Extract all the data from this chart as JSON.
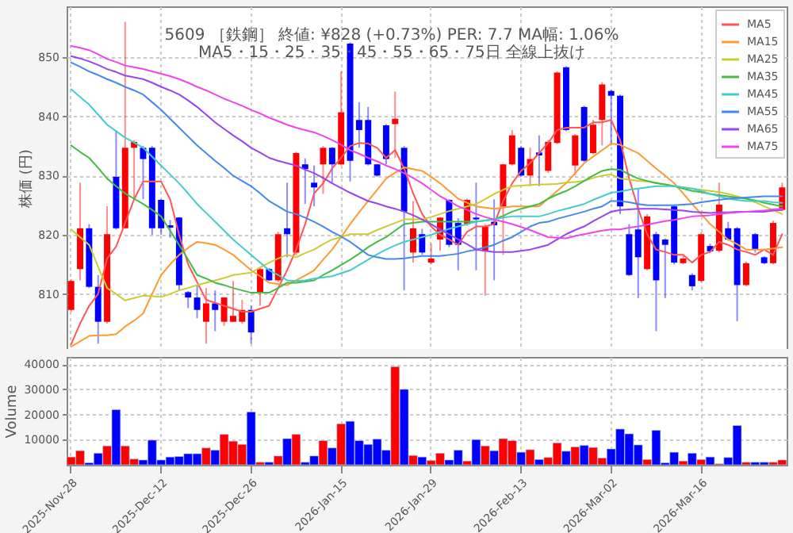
{
  "chart_data": [
    {
      "type": "candlestick",
      "title": "5609 ［鉄鋼］ 終値: ¥828 (+0.73%)   PER: 7.7  MA幅: 1.06%",
      "subtitle": "MA5・15・25・35・45・55・65・75日 全線上抜け",
      "ylabel": "株価 (円)",
      "categories": [
        null,
        null,
        null,
        null,
        null,
        null,
        null,
        null,
        null,
        null,
        null,
        null,
        null,
        null,
        null,
        null,
        null,
        null,
        null,
        null,
        null,
        null,
        null,
        null,
        null,
        null,
        null,
        null,
        null,
        null,
        null,
        null,
        null,
        null,
        null,
        null,
        null,
        null,
        null,
        null,
        null,
        null,
        null,
        null,
        null,
        null,
        null,
        null,
        null,
        null,
        null,
        null,
        null,
        null,
        null,
        null,
        null,
        null,
        null,
        null,
        null,
        null,
        null,
        null,
        null,
        null,
        null,
        null,
        null,
        null,
        null,
        null,
        null,
        null,
        null,
        null,
        null,
        null,
        null,
        null
      ],
      "ohlc": [
        [
          807.3,
          812.5,
          807,
          812.2
        ],
        [
          814.2,
          828.8,
          812.3,
          821.1
        ],
        [
          821.1,
          821.8,
          811,
          811.2
        ],
        [
          811.2,
          813.2,
          801.6,
          805.3
        ],
        [
          805.3,
          824.8,
          805,
          820.1
        ],
        [
          829.8,
          837.6,
          820.9,
          821.1
        ],
        [
          821.1,
          856,
          821,
          834.7
        ],
        [
          834.7,
          836,
          826,
          835.7
        ],
        [
          834.7,
          835,
          826,
          832.8
        ],
        [
          834.7,
          835,
          820,
          821.1
        ],
        [
          825.9,
          826,
          820,
          821.1
        ],
        [
          821.6,
          822.5,
          819.5,
          821.2
        ],
        [
          822.9,
          823,
          810.6,
          811.5
        ],
        [
          810.3,
          810.5,
          807.6,
          809.4
        ],
        [
          809.4,
          811.5,
          805.9,
          807.3
        ],
        [
          805.3,
          811,
          801.6,
          808.4
        ],
        [
          808.4,
          810.6,
          803.7,
          807.3
        ],
        [
          805.3,
          809.4,
          804.6,
          809.4
        ],
        [
          805.3,
          812.2,
          805.2,
          806.3
        ],
        [
          805.3,
          809,
          805,
          807.3
        ],
        [
          807.3,
          808,
          801.6,
          803.5
        ],
        [
          810.3,
          814.5,
          808,
          814.2
        ],
        [
          814.2,
          814.4,
          812.2,
          812.3
        ],
        [
          812.3,
          820.5,
          812,
          820.1
        ],
        [
          821.1,
          828.8,
          816.2,
          820.1
        ],
        [
          817,
          834,
          816.5,
          833.8
        ],
        [
          831.9,
          832.9,
          825.2,
          831.1
        ],
        [
          828.8,
          831.7,
          824.8,
          828
        ],
        [
          831.9,
          835,
          826.9,
          834.7
        ],
        [
          834.7,
          834.8,
          828.8,
          831.9
        ],
        [
          831.9,
          847.6,
          831.7,
          840.7
        ],
        [
          852.3,
          852.5,
          829,
          832.5
        ],
        [
          839.4,
          842.4,
          834.7,
          837.7
        ],
        [
          839.4,
          841.6,
          831.7,
          831.9
        ],
        [
          831.9,
          832,
          829.8,
          830
        ],
        [
          838.5,
          838.7,
          831.9,
          832.8
        ],
        [
          838.7,
          844.2,
          833,
          839.6
        ],
        [
          834.7,
          835,
          810.6,
          823.9
        ],
        [
          817,
          825.7,
          815.3,
          821.1
        ],
        [
          820.1,
          821,
          816.6,
          817
        ],
        [
          815.3,
          818.5,
          815,
          816
        ],
        [
          819.2,
          823,
          817.3,
          822.9
        ],
        [
          825.9,
          826,
          817.9,
          818.3
        ],
        [
          822,
          822.8,
          814,
          818.3
        ],
        [
          821.8,
          826.1,
          821.5,
          825.9
        ],
        [
          822.9,
          828.8,
          814,
          822.6
        ],
        [
          817.3,
          821.8,
          809.7,
          821.4
        ],
        [
          822.2,
          826,
          812.3,
          821.6
        ],
        [
          824.8,
          832,
          816.6,
          831.9
        ],
        [
          831.9,
          837.7,
          831.7,
          836.8
        ],
        [
          834.7,
          835,
          829.8,
          830
        ],
        [
          830,
          834.7,
          828.2,
          832.8
        ],
        [
          833.9,
          836.8,
          828.2,
          833.4
        ],
        [
          830.8,
          836,
          830.4,
          835.7
        ],
        [
          835.5,
          847.6,
          835.3,
          847.4
        ],
        [
          848.3,
          848.5,
          837.5,
          837.7
        ],
        [
          831.7,
          837,
          830,
          836.8
        ],
        [
          841.6,
          841.8,
          832.3,
          832.5
        ],
        [
          833.8,
          839.4,
          833.6,
          838.6
        ],
        [
          839.4,
          845.8,
          835.1,
          845.4
        ],
        [
          844.3,
          844.5,
          835.1,
          843.5
        ],
        [
          843.5,
          843.7,
          823.5,
          824.8
        ],
        [
          820.1,
          821.8,
          813,
          813.2
        ],
        [
          820.9,
          827.7,
          809.3,
          816.2
        ],
        [
          814.2,
          823.5,
          814,
          823.1
        ],
        [
          820.1,
          820.5,
          803.7,
          812.3
        ],
        [
          819.2,
          819.4,
          809.3,
          818.3
        ],
        [
          824.8,
          825,
          815,
          815.3
        ],
        [
          815.2,
          816.4,
          815,
          816
        ],
        [
          813.2,
          813.5,
          810.6,
          811.3
        ],
        [
          812.2,
          820.4,
          812,
          820.1
        ],
        [
          818.1,
          818.5,
          817,
          817.2
        ],
        [
          817.3,
          828.8,
          817,
          825.1
        ],
        [
          821.1,
          822.2,
          819,
          819.2
        ],
        [
          821.1,
          821.3,
          805.4,
          811.5
        ],
        [
          811.5,
          815.5,
          811.3,
          815.2
        ],
        [
          820.1,
          820.3,
          817,
          817.6
        ],
        [
          816.2,
          816.4,
          815,
          815.2
        ],
        [
          815.2,
          822.4,
          815,
          822
        ],
        [
          824.2,
          828.8,
          824,
          828
        ]
      ],
      "colors": [
        "#ff0000",
        "#ff0000",
        "#0000ff",
        "#0000ff",
        "#ff0000",
        "#0000ff",
        "#ff0000",
        "#ff0000",
        "#0000ff",
        "#0000ff",
        "#0000ff",
        "#0000ff",
        "#0000ff",
        "#0000ff",
        "#0000ff",
        "#ff0000",
        "#0000ff",
        "#ff0000",
        "#ff0000",
        "#ff0000",
        "#0000ff",
        "#ff0000",
        "#0000ff",
        "#ff0000",
        "#0000ff",
        "#ff0000",
        "#0000ff",
        "#0000ff",
        "#ff0000",
        "#0000ff",
        "#ff0000",
        "#0000ff",
        "#0000ff",
        "#0000ff",
        "#0000ff",
        "#0000ff",
        "#ff0000",
        "#0000ff",
        "#ff0000",
        "#0000ff",
        "#ff0000",
        "#ff0000",
        "#0000ff",
        "#0000ff",
        "#ff0000",
        "#0000ff",
        "#ff0000",
        "#0000ff",
        "#ff0000",
        "#ff0000",
        "#0000ff",
        "#ff0000",
        "#0000ff",
        "#ff0000",
        "#ff0000",
        "#0000ff",
        "#ff0000",
        "#0000ff",
        "#ff0000",
        "#ff0000",
        "#0000ff",
        "#0000ff",
        "#0000ff",
        "#0000ff",
        "#ff0000",
        "#0000ff",
        "#0000ff",
        "#0000ff",
        "#ff0000",
        "#0000ff",
        "#ff0000",
        "#0000ff",
        "#ff0000",
        "#0000ff",
        "#0000ff",
        "#ff0000",
        "#0000ff",
        "#0000ff",
        "#ff0000",
        "#ff0000"
      ],
      "series": [
        {
          "type": "line",
          "name": "MA5",
          "color": "#ff5555",
          "values": [
            801.5,
            805,
            808,
            810,
            816,
            818,
            822,
            826,
            829,
            829,
            829,
            826,
            820,
            815,
            812,
            809,
            808.5,
            808,
            807.5,
            807,
            807,
            807.5,
            808,
            811,
            814,
            817.5,
            821.8,
            827,
            828.7,
            831.2,
            833,
            835,
            835.5,
            835.4,
            834.7,
            833,
            834.3,
            831.2,
            827,
            823.5,
            821.4,
            820,
            819.2,
            818.3,
            820.5,
            821.4,
            821.4,
            821.8,
            825.7,
            828.7,
            830.8,
            832.1,
            833.8,
            835.5,
            837.7,
            838.1,
            838.1,
            838.1,
            839,
            839,
            839.4,
            836,
            829.5,
            824.4,
            820.1,
            817.5,
            817.1,
            816.6,
            816.6,
            815.3,
            816.6,
            817.1,
            818.8,
            818.3,
            817.5,
            817.1,
            816.6,
            817.5,
            816.6,
            820.1
          ]
        },
        {
          "type": "line",
          "name": "MA15",
          "color": "#ff9933",
          "values": [
            801.1,
            802,
            802.9,
            803,
            803,
            803.2,
            804.5,
            805.5,
            806.7,
            810,
            813.2,
            815,
            816.6,
            817.8,
            818.8,
            818.6,
            818.3,
            817.5,
            816.6,
            815.3,
            814,
            813,
            811.9,
            811.7,
            811.5,
            812.3,
            813.1,
            814,
            815.8,
            817.5,
            819.6,
            821.8,
            823.8,
            825.7,
            827.6,
            829.5,
            830.5,
            831.4,
            831.1,
            830.8,
            829.8,
            828.7,
            827.4,
            826.1,
            825.4,
            824.8,
            824.6,
            824.4,
            824.6,
            824.8,
            824.8,
            824.8,
            824.8,
            826.1,
            827.4,
            828.7,
            830.4,
            832.1,
            833.2,
            834.3,
            835.4,
            835.2,
            834.5,
            833.8,
            832.5,
            831.2,
            830,
            828.7,
            827,
            825.2,
            823.5,
            821.8,
            820.5,
            819.2,
            818.4,
            817.5,
            817.5,
            817.5,
            817.7,
            817.9
          ]
        },
        {
          "type": "line",
          "name": "MA25",
          "color": "#cccc33",
          "values": [
            820.9,
            819.6,
            818.3,
            814.6,
            811,
            810,
            808.9,
            809.3,
            809.7,
            809.6,
            809.5,
            810,
            810.6,
            811,
            811.5,
            811.9,
            812.3,
            812.7,
            813.2,
            813.4,
            813.6,
            814.5,
            815.3,
            816,
            816.6,
            816.2,
            816.9,
            817.5,
            818.4,
            819.2,
            819.6,
            820.1,
            820.1,
            820.1,
            820.8,
            821.4,
            822,
            822.6,
            822.6,
            822.6,
            823,
            823.5,
            824,
            824.4,
            824.8,
            825.2,
            826,
            826.9,
            827.6,
            828.2,
            828.3,
            828.4,
            828.5,
            828.5,
            828.6,
            828.8,
            828.9,
            829.1,
            829.6,
            830,
            830.2,
            829.5,
            829.3,
            829.1,
            829,
            828.8,
            828.5,
            828.2,
            828,
            827.8,
            827.6,
            827.4,
            827.2,
            826.9,
            826.5,
            826.1,
            825.5,
            824.8,
            824.2,
            823.5
          ]
        },
        {
          "type": "line",
          "name": "MA35",
          "color": "#44bb44",
          "values": [
            835.1,
            834,
            833,
            831.3,
            829.5,
            828.2,
            827,
            826.1,
            825.2,
            824.2,
            823.1,
            820.7,
            818.3,
            815.8,
            813.2,
            812.6,
            811.9,
            811.5,
            811,
            810.6,
            810.2,
            810.2,
            810.2,
            811,
            811.9,
            811.9,
            812.1,
            812.3,
            813.2,
            814,
            814.9,
            815.8,
            816.8,
            817.9,
            818.8,
            819.6,
            820.7,
            821.8,
            822,
            822.2,
            822.2,
            822.2,
            822.2,
            822.2,
            822.2,
            822.2,
            822.4,
            822.6,
            823.2,
            823.9,
            824.4,
            824.8,
            825.2,
            826.1,
            826.8,
            827.4,
            828.2,
            829.1,
            830,
            830.8,
            831.1,
            831,
            830.2,
            829.5,
            829.1,
            828.7,
            828.5,
            828.2,
            827.8,
            827.4,
            827.2,
            826.9,
            826.7,
            826.5,
            826.3,
            826.1,
            825.8,
            825.4,
            825.1,
            824.8
          ]
        },
        {
          "type": "line",
          "name": "MA45",
          "color": "#44cccc",
          "values": [
            844.6,
            843.3,
            842,
            840.3,
            838.6,
            837.5,
            836.4,
            835.6,
            834.7,
            833.2,
            831.7,
            830.2,
            828.7,
            827,
            825.2,
            823.7,
            822.2,
            820.7,
            819.2,
            817.9,
            816.6,
            815.3,
            814,
            813.2,
            812.3,
            812.2,
            812.3,
            812.6,
            812.8,
            813,
            813.5,
            814,
            814.9,
            815.8,
            816.7,
            817.5,
            818.2,
            818.8,
            819.2,
            819.6,
            820,
            820.5,
            821,
            821.4,
            821.8,
            822.2,
            822.4,
            822.6,
            822.9,
            823.1,
            823.1,
            823.1,
            823.1,
            823.5,
            824,
            824.4,
            824.8,
            825.2,
            825.9,
            826.5,
            827.1,
            827.3,
            827.6,
            827.8,
            828,
            828.2,
            828.2,
            828.2,
            828,
            827.8,
            827.4,
            826.9,
            826.5,
            826.1,
            825.9,
            825.7,
            825.7,
            825.7,
            825.5,
            825.4
          ]
        },
        {
          "type": "line",
          "name": "MA55",
          "color": "#4488ee",
          "values": [
            849.1,
            848.4,
            847.6,
            847,
            846.3,
            845.7,
            845,
            844.4,
            843.7,
            842.4,
            841.1,
            839.6,
            838.1,
            836.6,
            835.1,
            833.8,
            832.5,
            831.3,
            830,
            829.1,
            828.2,
            827,
            825.7,
            824.8,
            823.9,
            823.5,
            822.9,
            822.2,
            821.4,
            820.5,
            819.7,
            818.8,
            817.7,
            816.6,
            816.2,
            815.9,
            815.9,
            816,
            816.2,
            816.4,
            816.4,
            816.4,
            816.6,
            816.8,
            817.2,
            817.5,
            817.9,
            818.3,
            819,
            819.6,
            820.5,
            821.4,
            822,
            822.2,
            822.7,
            823.1,
            823.5,
            823.9,
            824.4,
            824.8,
            825.7,
            825.7,
            825.5,
            825.2,
            825,
            825,
            825,
            825,
            825.1,
            825.2,
            825.5,
            825.7,
            825.9,
            826.1,
            826.2,
            826.3,
            826.4,
            826.5,
            826.5,
            826.5
          ]
        },
        {
          "type": "line",
          "name": "MA65",
          "color": "#9944ee",
          "values": [
            850.2,
            849.8,
            849.3,
            848.7,
            848,
            847.5,
            846.9,
            846.6,
            846.3,
            845.7,
            845,
            844.4,
            843.7,
            842.7,
            841.6,
            840.3,
            839,
            837.9,
            836.8,
            835.8,
            834.7,
            833.9,
            833,
            832.5,
            832.1,
            831.7,
            831,
            830.4,
            829.6,
            828.7,
            827.9,
            827.1,
            826.4,
            825.7,
            825.3,
            824.8,
            824.4,
            823.9,
            823.3,
            822.6,
            821.8,
            820.9,
            820.1,
            819.2,
            818.4,
            817.5,
            817.3,
            817.1,
            817.1,
            817.1,
            817.3,
            817.5,
            817.9,
            818.3,
            819.2,
            820.1,
            820.8,
            821.4,
            822.3,
            823.1,
            823.9,
            824.2,
            824.3,
            824.4,
            824.4,
            824.4,
            824.3,
            824.2,
            824.1,
            823.9,
            823.8,
            823.7,
            823.8,
            823.8,
            823.9,
            823.9,
            823.9,
            823.9,
            824.1,
            824.2
          ]
        },
        {
          "type": "line",
          "name": "MA75",
          "color": "#ee44ee",
          "values": [
            851.9,
            851.6,
            851.2,
            850.5,
            849.7,
            849.2,
            848.6,
            848.3,
            848,
            847.6,
            847.2,
            846.8,
            846.3,
            845.7,
            845,
            844.4,
            843.7,
            843,
            842.4,
            841.8,
            841.1,
            840.5,
            839.8,
            839.2,
            838.6,
            838.1,
            837.7,
            837.3,
            836.7,
            836,
            835.2,
            834.3,
            833.7,
            833,
            832.4,
            831.7,
            831.1,
            830.4,
            829.6,
            828.7,
            827.6,
            826.5,
            825.7,
            824.8,
            824.2,
            823.5,
            823,
            822.6,
            822.2,
            821.8,
            821.3,
            820.8,
            820.2,
            819.6,
            819.5,
            819.4,
            819.8,
            820.1,
            820.4,
            820.7,
            820.9,
            820.9,
            821.2,
            821.4,
            821.7,
            822,
            822.3,
            822.5,
            822.8,
            823.1,
            823.2,
            823.3,
            823.5,
            823.7,
            823.8,
            823.9,
            824,
            824.1,
            824.3,
            824.4
          ]
        }
      ],
      "ylim": [
        800.7,
        858.6
      ],
      "yticks": [
        810,
        820,
        830,
        840,
        850
      ],
      "grid": true,
      "legend": "top right",
      "tick_labels": "y"
    },
    {
      "type": "bar",
      "ylabel": "Volume",
      "categories": [
        "2025-Nov-28",
        null,
        null,
        null,
        null,
        null,
        null,
        null,
        null,
        null,
        "2025-Dec-12",
        null,
        null,
        null,
        null,
        null,
        null,
        null,
        null,
        null,
        "2025-Dec-26",
        null,
        null,
        null,
        null,
        null,
        null,
        null,
        null,
        null,
        "2026-Jan-15",
        null,
        null,
        null,
        null,
        null,
        null,
        null,
        null,
        null,
        "2026-Jan-29",
        null,
        null,
        null,
        null,
        null,
        null,
        null,
        null,
        null,
        "2026-Feb-13",
        null,
        null,
        null,
        null,
        null,
        null,
        null,
        null,
        null,
        "2026-Mar-02",
        null,
        null,
        null,
        null,
        null,
        null,
        null,
        null,
        null,
        "2026-Mar-16",
        null,
        null,
        null,
        null,
        null,
        null,
        null,
        null,
        null
      ],
      "values": [
        3100,
        5600,
        800,
        4600,
        7500,
        21900,
        7500,
        2300,
        1900,
        9800,
        1900,
        3100,
        3300,
        4400,
        4400,
        6700,
        5800,
        12100,
        9400,
        8100,
        21000,
        1000,
        1000,
        3500,
        10400,
        12100,
        1000,
        3500,
        9600,
        6700,
        16300,
        17300,
        9600,
        8100,
        10200,
        5800,
        39000,
        30000,
        3700,
        3100,
        1700,
        4600,
        1900,
        5800,
        1500,
        10000,
        7500,
        5600,
        10400,
        9600,
        5000,
        6000,
        2100,
        2900,
        8700,
        5400,
        7100,
        7700,
        6900,
        2700,
        6300,
        14200,
        12300,
        7900,
        2100,
        13700,
        800,
        5000,
        1500,
        4600,
        2100,
        3100,
        400,
        2900,
        15600,
        1000,
        1000,
        1000,
        1000,
        1900
      ],
      "colors": [
        "#ff0000",
        "#ff0000",
        "#0000ff",
        "#0000ff",
        "#ff0000",
        "#0000ff",
        "#ff0000",
        "#ff0000",
        "#0000ff",
        "#0000ff",
        "#0000ff",
        "#0000ff",
        "#0000ff",
        "#0000ff",
        "#0000ff",
        "#ff0000",
        "#0000ff",
        "#ff0000",
        "#ff0000",
        "#ff0000",
        "#0000ff",
        "#ff0000",
        "#0000ff",
        "#ff0000",
        "#0000ff",
        "#ff0000",
        "#0000ff",
        "#0000ff",
        "#ff0000",
        "#0000ff",
        "#ff0000",
        "#0000ff",
        "#0000ff",
        "#0000ff",
        "#0000ff",
        "#0000ff",
        "#ff0000",
        "#0000ff",
        "#ff0000",
        "#0000ff",
        "#ff0000",
        "#ff0000",
        "#0000ff",
        "#0000ff",
        "#ff0000",
        "#0000ff",
        "#ff0000",
        "#0000ff",
        "#ff0000",
        "#ff0000",
        "#0000ff",
        "#ff0000",
        "#0000ff",
        "#ff0000",
        "#ff0000",
        "#0000ff",
        "#ff0000",
        "#0000ff",
        "#ff0000",
        "#ff0000",
        "#0000ff",
        "#0000ff",
        "#0000ff",
        "#0000ff",
        "#ff0000",
        "#0000ff",
        "#0000ff",
        "#0000ff",
        "#ff0000",
        "#0000ff",
        "#ff0000",
        "#0000ff",
        "#ff0000",
        "#0000ff",
        "#0000ff",
        "#ff0000",
        "#0000ff",
        "#0000ff",
        "#ff0000",
        "#ff0000"
      ],
      "ylim": [
        0,
        42900
      ],
      "yticks": [
        10000,
        20000,
        30000,
        40000
      ],
      "grid": true
    }
  ]
}
